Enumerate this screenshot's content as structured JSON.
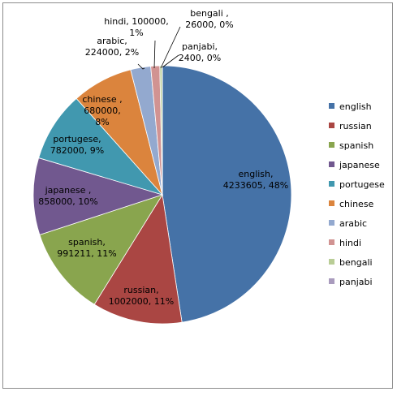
{
  "chart_data": {
    "type": "pie",
    "title": "",
    "categories": [
      "english",
      "russian",
      "spanish",
      "japanese",
      "portugese",
      "chinese",
      "arabic",
      "hindi",
      "bengali",
      "panjabi"
    ],
    "values": [
      4233605,
      1002000,
      991211,
      858000,
      782000,
      680000,
      224000,
      100000,
      26000,
      2400
    ],
    "percents": [
      "48%",
      "11%",
      "11%",
      "10%",
      "9%",
      "8%",
      "2%",
      "1%",
      "0%",
      "0%"
    ],
    "data_labels": [
      [
        "english,",
        "4233605, 48%"
      ],
      [
        "russian,",
        "1002000, 11%"
      ],
      [
        "spanish,",
        "991211, 11%"
      ],
      [
        "japanese ,",
        "858000, 10%"
      ],
      [
        "portugese,",
        "782000, 9%"
      ],
      [
        "chinese ,",
        "680000,",
        "8%"
      ],
      [
        "arabic,",
        "224000, 2%"
      ],
      [
        "hindi, 100000,",
        "1%"
      ],
      [
        "bengali ,",
        "26000, 0%"
      ],
      [
        "panjabi,",
        "2400, 0%"
      ]
    ],
    "colors": [
      "#4572A7",
      "#AA4643",
      "#89A54E",
      "#71588F",
      "#4198AF",
      "#DB843D",
      "#93A9CF",
      "#D19392",
      "#B9CD96",
      "#A99BBD"
    ],
    "legend": {
      "placement": "right",
      "entries": [
        "english",
        "russian",
        "spanish",
        "japanese",
        "portugese",
        "chinese",
        "arabic",
        "hindi",
        "bengali",
        "panjabi"
      ]
    },
    "start": "12 o'clock, clockwise"
  }
}
